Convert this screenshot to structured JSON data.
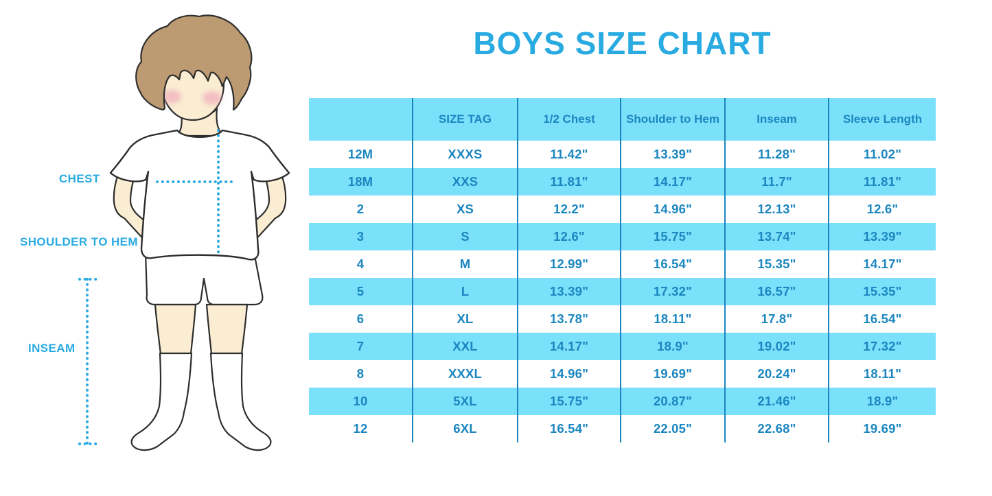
{
  "page": {
    "title": "BOYS SIZE CHART"
  },
  "colors": {
    "accent": "#29ABE2",
    "table_fill": "#7BE0F9",
    "table_text": "#1B86C0",
    "table_line": "#1B86C0",
    "skin": "#FAEDD2",
    "hair": "#BC9B72",
    "blush": "#F0A8BC",
    "outline": "#2E2E2E",
    "clothes": "#FFFFFF"
  },
  "figure": {
    "labels": {
      "chest": "CHEST",
      "shoulder_to_hem": "SHOULDER TO HEM",
      "inseam": "INSEAM"
    }
  },
  "chart_data": {
    "type": "table",
    "title": "BOYS SIZE CHART",
    "columns": [
      "",
      "SIZE TAG",
      "1/2 Chest",
      "Shoulder to Hem",
      "Inseam",
      "Sleeve Length"
    ],
    "rows": [
      [
        "12M",
        "XXXS",
        "11.42\"",
        "13.39\"",
        "11.28\"",
        "11.02\""
      ],
      [
        "18M",
        "XXS",
        "11.81\"",
        "14.17\"",
        "11.7\"",
        "11.81\""
      ],
      [
        "2",
        "XS",
        "12.2\"",
        "14.96\"",
        "12.13\"",
        "12.6\""
      ],
      [
        "3",
        "S",
        "12.6\"",
        "15.75\"",
        "13.74\"",
        "13.39\""
      ],
      [
        "4",
        "M",
        "12.99\"",
        "16.54\"",
        "15.35\"",
        "14.17\""
      ],
      [
        "5",
        "L",
        "13.39\"",
        "17.32\"",
        "16.57\"",
        "15.35\""
      ],
      [
        "6",
        "XL",
        "13.78\"",
        "18.11\"",
        "17.8\"",
        "16.54\""
      ],
      [
        "7",
        "XXL",
        "14.17\"",
        "18.9\"",
        "19.02\"",
        "17.32\""
      ],
      [
        "8",
        "XXXL",
        "14.96\"",
        "19.69\"",
        "20.24\"",
        "18.11\""
      ],
      [
        "10",
        "5XL",
        "15.75\"",
        "20.87\"",
        "21.46\"",
        "18.9\""
      ],
      [
        "12",
        "6XL",
        "16.54\"",
        "22.05\"",
        "22.68\"",
        "19.69\""
      ]
    ],
    "layout": {
      "header_fill": "light-blue",
      "row_striping": "white / light-blue alternating starting white",
      "grid": "vertical dividers only, no outer border"
    }
  }
}
